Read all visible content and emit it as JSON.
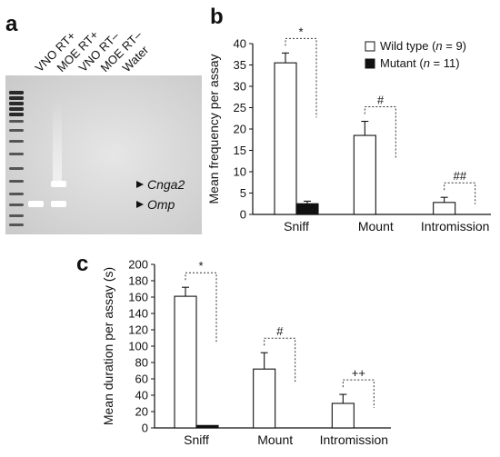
{
  "panels": {
    "a": "a",
    "b": "b",
    "c": "c"
  },
  "gel": {
    "lanes": [
      "VNO RT+",
      "MOE RT+",
      "VNO RT–",
      "MOE RT–",
      "Water"
    ],
    "band_labels": [
      "Cnga2",
      "Omp"
    ]
  },
  "chart_data": [
    {
      "type": "bar",
      "panel": "b",
      "ylabel": "Mean frequency per assay",
      "xlabel": "",
      "categories": [
        "Sniff",
        "Mount",
        "Intromission"
      ],
      "ylim": [
        0,
        40
      ],
      "yticks": [
        0,
        5,
        10,
        15,
        20,
        25,
        30,
        35,
        40
      ],
      "series": [
        {
          "name": "Wild type (n = 9)",
          "legend_prefix": "Wild type (",
          "legend_n": "n",
          "legend_suffix": " = 9)",
          "fill": "#ffffff",
          "values": [
            35.5,
            18.5,
            2.8
          ],
          "errors": [
            2.3,
            3.3,
            1.2
          ]
        },
        {
          "name": "Mutant (n = 11)",
          "legend_prefix": "Mutant (",
          "legend_n": "n",
          "legend_suffix": " = 11)",
          "fill": "#111111",
          "values": [
            2.5,
            0,
            0
          ],
          "errors": [
            0.6,
            0,
            0
          ]
        }
      ],
      "significance": [
        "*",
        "#",
        "##"
      ],
      "legend_position": "top-right"
    },
    {
      "type": "bar",
      "panel": "c",
      "ylabel": "Mean duration per assay (s)",
      "xlabel": "",
      "categories": [
        "Sniff",
        "Mount",
        "Intromission"
      ],
      "ylim": [
        0,
        200
      ],
      "yticks": [
        0,
        20,
        40,
        60,
        80,
        100,
        120,
        140,
        160,
        180,
        200
      ],
      "series": [
        {
          "name": "Wild type",
          "fill": "#ffffff",
          "values": [
            161,
            72,
            30
          ],
          "errors": [
            11,
            20,
            11
          ]
        },
        {
          "name": "Mutant",
          "fill": "#111111",
          "values": [
            3,
            0,
            0
          ],
          "errors": [
            0,
            0,
            0
          ]
        }
      ],
      "significance": [
        "*",
        "#",
        "++"
      ]
    }
  ]
}
